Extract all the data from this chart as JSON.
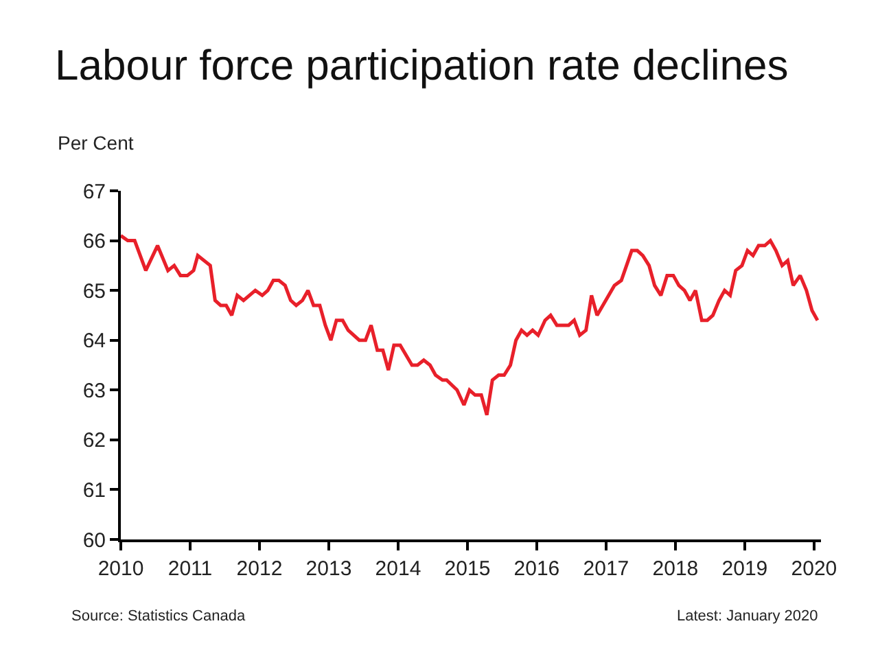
{
  "chart_data": {
    "type": "line",
    "title": "Labour force participation rate declines",
    "ylabel": "Per Cent",
    "annotations": [
      "Source: Statistics Canada",
      "Latest: January 2020"
    ],
    "x": [
      2010.0,
      2010.1,
      2010.2,
      2010.36,
      2010.53,
      2010.68,
      2010.77,
      2010.86,
      2010.96,
      2011.05,
      2011.11,
      2011.29,
      2011.36,
      2011.44,
      2011.52,
      2011.6,
      2011.68,
      2011.77,
      2011.94,
      2012.04,
      2012.12,
      2012.2,
      2012.28,
      2012.37,
      2012.45,
      2012.53,
      2012.62,
      2012.7,
      2012.78,
      2012.87,
      2012.95,
      2013.03,
      2013.11,
      2013.2,
      2013.28,
      2013.44,
      2013.53,
      2013.61,
      2013.7,
      2013.78,
      2013.86,
      2013.94,
      2014.03,
      2014.2,
      2014.28,
      2014.37,
      2014.46,
      2014.54,
      2014.64,
      2014.7,
      2014.85,
      2014.95,
      2015.03,
      2015.11,
      2015.2,
      2015.28,
      2015.36,
      2015.45,
      2015.53,
      2015.62,
      2015.7,
      2015.78,
      2015.86,
      2015.94,
      2016.02,
      2016.12,
      2016.2,
      2016.29,
      2016.46,
      2016.54,
      2016.62,
      2016.71,
      2016.79,
      2016.87,
      2017.12,
      2017.22,
      2017.37,
      2017.45,
      2017.53,
      2017.62,
      2017.7,
      2017.79,
      2017.88,
      2017.97,
      2018.05,
      2018.13,
      2018.21,
      2018.29,
      2018.38,
      2018.46,
      2018.54,
      2018.63,
      2018.71,
      2018.79,
      2018.87,
      2018.96,
      2019.04,
      2019.12,
      2019.2,
      2019.29,
      2019.37,
      2019.45,
      2019.54,
      2019.62,
      2019.7,
      2019.8,
      2019.89,
      2019.97,
      2020.05
    ],
    "series": [
      {
        "color": "#e8202a",
        "values": [
          66.1,
          66.0,
          66.0,
          65.4,
          65.9,
          65.4,
          65.5,
          65.3,
          65.3,
          65.4,
          65.7,
          65.5,
          64.8,
          64.7,
          64.7,
          64.5,
          64.9,
          64.8,
          65.0,
          64.9,
          65.0,
          65.2,
          65.2,
          65.1,
          64.8,
          64.7,
          64.8,
          65.0,
          64.7,
          64.7,
          64.3,
          64.0,
          64.4,
          64.4,
          64.2,
          64.0,
          64.0,
          64.3,
          63.8,
          63.8,
          63.4,
          63.9,
          63.9,
          63.5,
          63.5,
          63.6,
          63.5,
          63.3,
          63.2,
          63.2,
          63.0,
          62.7,
          63.0,
          62.9,
          62.9,
          62.5,
          63.2,
          63.3,
          63.3,
          63.5,
          64.0,
          64.2,
          64.1,
          64.2,
          64.1,
          64.4,
          64.5,
          64.3,
          64.3,
          64.4,
          64.1,
          64.2,
          64.9,
          64.5,
          65.1,
          65.2,
          65.8,
          65.8,
          65.7,
          65.5,
          65.1,
          64.9,
          65.3,
          65.3,
          65.1,
          65.0,
          64.8,
          65.0,
          64.4,
          64.4,
          64.5,
          64.8,
          65.0,
          64.9,
          65.4,
          65.5,
          65.8,
          65.7,
          65.9,
          65.9,
          66.0,
          65.8,
          65.5,
          65.6,
          65.1,
          65.3,
          65.0,
          64.6,
          64.4
        ]
      }
    ],
    "xlim": [
      2010,
      2020.1
    ],
    "xticks": [
      2010,
      2011,
      2012,
      2013,
      2014,
      2015,
      2016,
      2017,
      2018,
      2019,
      2020
    ],
    "ylim": [
      60,
      67
    ],
    "yticks": [
      60,
      61,
      62,
      63,
      64,
      65,
      66,
      67
    ],
    "marker": "none",
    "line_style": "solid"
  }
}
